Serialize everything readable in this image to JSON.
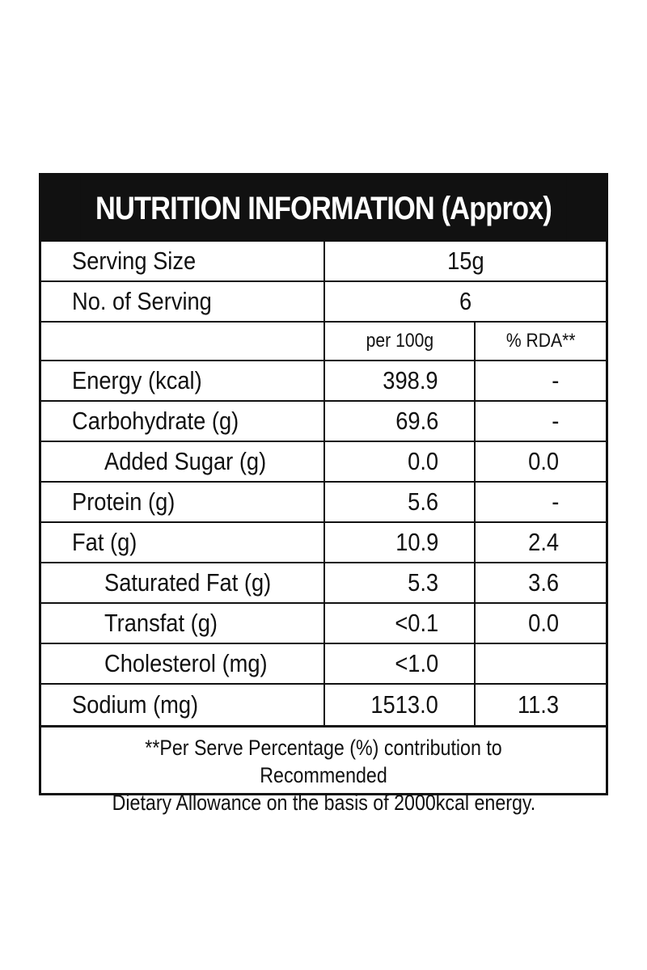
{
  "title": "NUTRITION INFORMATION (Approx)",
  "serving": {
    "size_label": "Serving Size",
    "size_value": "15g",
    "count_label": "No. of Serving",
    "count_value": "6"
  },
  "columns": {
    "per100": "per 100g",
    "rda": "% RDA**"
  },
  "rows": [
    {
      "name": "Energy (kcal)",
      "per100": "398.9",
      "rda": "-",
      "indent": false
    },
    {
      "name": "Carbohydrate (g)",
      "per100": "69.6",
      "rda": "-",
      "indent": false
    },
    {
      "name": "Added Sugar (g)",
      "per100": "0.0",
      "rda": "0.0",
      "indent": true
    },
    {
      "name": "Protein (g)",
      "per100": "5.6",
      "rda": "-",
      "indent": false
    },
    {
      "name": "Fat (g)",
      "per100": "10.9",
      "rda": "2.4",
      "indent": false
    },
    {
      "name": "Saturated Fat (g)",
      "per100": "5.3",
      "rda": "3.6",
      "indent": true
    },
    {
      "name": "Transfat (g)",
      "per100": "<0.1",
      "rda": "0.0",
      "indent": true
    },
    {
      "name": "Cholesterol (mg)",
      "per100": "<1.0",
      "rda": "",
      "indent": true
    },
    {
      "name": "Sodium (mg)",
      "per100": "1513.0",
      "rda": "11.3",
      "indent": false
    }
  ],
  "footnote": {
    "line1": "**Per Serve Percentage (%) contribution to Recommended",
    "line2": "Dietary Allowance on the basis of 2000kcal energy."
  }
}
